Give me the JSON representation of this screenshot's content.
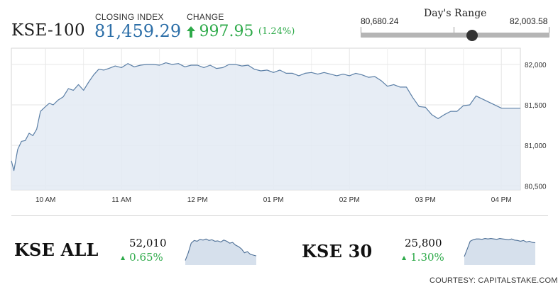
{
  "header": {
    "index_name": "KSE-100",
    "closing_label": "CLOSING INDEX",
    "closing_value": "81,459.29",
    "change_label": "CHANGE",
    "change_value": "997.95",
    "change_pct": "(1.24%)",
    "positive_color": "#2eaa4a",
    "accent_color": "#2d6fa8"
  },
  "days_range": {
    "title": "Day's Range",
    "low_label": "80,680.24",
    "high_label": "82,003.58",
    "low": 80680.24,
    "high": 82003.58,
    "current": 81459.29
  },
  "chart_data": [
    {
      "type": "area",
      "title": "",
      "xlabel": "",
      "ylabel": "",
      "x_ticks": [
        "10 AM",
        "11 AM",
        "12 PM",
        "01 PM",
        "02 PM",
        "03 PM",
        "04 PM"
      ],
      "y_ticks": [
        "80,500",
        "81,000",
        "81,500",
        "82,000"
      ],
      "y_tick_values": [
        80500,
        81000,
        81500,
        82000
      ],
      "ylim": [
        80450,
        82200
      ],
      "xlim": [
        "09:33",
        "16:15"
      ],
      "grid": true,
      "line_color": "#5b7fa6",
      "fill_color": "#e3eaf3",
      "series": [
        {
          "x": [
            "09:33",
            "09:35",
            "09:38",
            "09:41",
            "09:44",
            "09:47",
            "09:50",
            "09:53",
            "09:56",
            "10:00",
            "10:03",
            "10:06",
            "10:10",
            "10:14",
            "10:18",
            "10:22",
            "10:26",
            "10:30",
            "10:34",
            "10:38",
            "10:42",
            "10:46",
            "10:50",
            "10:55",
            "11:00",
            "11:05",
            "11:10",
            "11:15",
            "11:20",
            "11:25",
            "11:30",
            "11:35",
            "11:40",
            "11:45",
            "11:50",
            "11:55",
            "12:00",
            "12:05",
            "12:10",
            "12:15",
            "12:20",
            "12:25",
            "12:30",
            "12:35",
            "12:40",
            "12:45",
            "12:50",
            "12:55",
            "13:00",
            "13:05",
            "13:10",
            "13:15",
            "13:20",
            "13:25",
            "13:30",
            "13:35",
            "13:40",
            "13:45",
            "13:50",
            "13:55",
            "14:00",
            "14:05",
            "14:10",
            "14:15",
            "14:20",
            "14:25",
            "14:30",
            "14:35",
            "14:40",
            "14:45",
            "14:50",
            "14:55",
            "15:00",
            "15:05",
            "15:10",
            "15:15",
            "15:20",
            "15:25",
            "15:30",
            "15:35",
            "15:40",
            "16:00",
            "16:15"
          ],
          "y": [
            80810,
            80690,
            80950,
            81050,
            81060,
            81150,
            81120,
            81200,
            81420,
            81480,
            81520,
            81500,
            81560,
            81600,
            81700,
            81680,
            81750,
            81680,
            81780,
            81870,
            81940,
            81930,
            81950,
            81980,
            81960,
            82010,
            81970,
            81990,
            82000,
            82000,
            81990,
            82020,
            82000,
            82010,
            81970,
            81990,
            81990,
            81960,
            81990,
            81950,
            81960,
            82000,
            82000,
            81980,
            81990,
            81940,
            81920,
            81930,
            81900,
            81930,
            81890,
            81890,
            81860,
            81890,
            81900,
            81880,
            81900,
            81880,
            81860,
            81880,
            81860,
            81890,
            81870,
            81840,
            81850,
            81800,
            81730,
            81750,
            81720,
            81720,
            81590,
            81480,
            81470,
            81380,
            81330,
            81380,
            81420,
            81420,
            81490,
            81500,
            81610,
            81460,
            81459.29
          ]
        }
      ]
    },
    {
      "type": "area",
      "title": "KSE ALL",
      "value_label": "52,010",
      "change_label": "0.65%",
      "series": [
        {
          "y": [
            10,
            30,
            55,
            62,
            60,
            65,
            63,
            66,
            62,
            64,
            60,
            61,
            58,
            63,
            60,
            55,
            57,
            50,
            46,
            40,
            30,
            33,
            26,
            24,
            22
          ]
        }
      ]
    },
    {
      "type": "area",
      "title": "KSE 30",
      "value_label": "25,800",
      "change_label": "1.30%",
      "series": [
        {
          "y": [
            20,
            40,
            60,
            64,
            66,
            66,
            65,
            67,
            66,
            67,
            66,
            65,
            67,
            66,
            65,
            64,
            66,
            63,
            62,
            60,
            62,
            58,
            60,
            57,
            56
          ]
        }
      ]
    }
  ],
  "footer": {
    "courtesy": "COURTESY: CAPITALSTAKE.COM"
  }
}
